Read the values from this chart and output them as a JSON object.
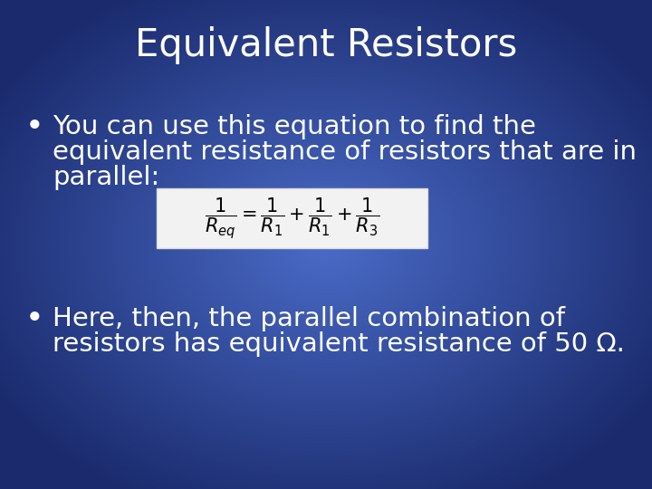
{
  "title": "Equivalent Resistors",
  "title_fontsize": 30,
  "title_color": "#ffffff",
  "bullet1_line1": "You can use this equation to find the",
  "bullet1_line2": "equivalent resistance of resistors that are in",
  "bullet1_line3": "parallel:",
  "bullet2_line1": "Here, then, the parallel combination of",
  "bullet2_line2": "resistors has equivalent resistance of 50 Ω.",
  "text_fontsize": 21,
  "text_color": "#ffffff",
  "bg_top_color": "#1e3080",
  "bg_mid_color": "#3a5bbf",
  "bg_bot_color": "#1e3080",
  "equation_box_facecolor": "#f2f2f2",
  "equation_box_edgecolor": "#dddddd",
  "equation_text_color": "#000000"
}
